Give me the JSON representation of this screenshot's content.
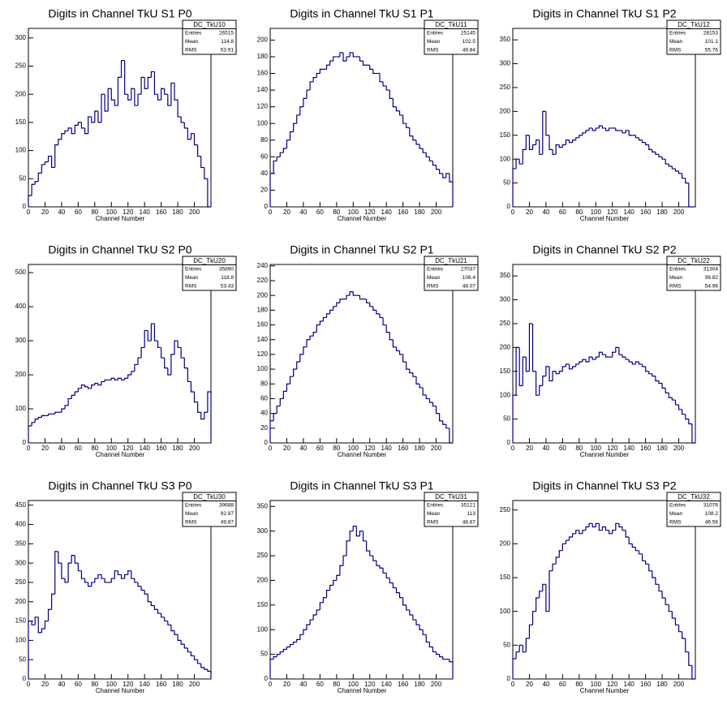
{
  "chart_data": [
    {
      "type": "histogram",
      "title": "Digits in Channel TkU S1 P0",
      "x_label": "Channel Number",
      "color": "#000080",
      "bins": [
        0,
        4,
        8,
        12,
        16,
        20,
        24,
        28,
        32,
        36,
        40,
        44,
        48,
        52,
        56,
        60,
        64,
        68,
        72,
        76,
        80,
        84,
        88,
        92,
        96,
        100,
        104,
        108,
        112,
        116,
        120,
        124,
        128,
        132,
        136,
        140,
        144,
        148,
        152,
        156,
        160,
        164,
        168,
        172,
        176,
        180,
        184,
        188,
        192,
        196,
        200,
        204,
        208,
        212,
        216,
        220
      ],
      "values": [
        20,
        40,
        45,
        60,
        75,
        80,
        90,
        70,
        110,
        120,
        130,
        135,
        140,
        130,
        145,
        150,
        140,
        130,
        160,
        150,
        170,
        150,
        200,
        170,
        210,
        190,
        180,
        230,
        260,
        200,
        190,
        210,
        180,
        200,
        230,
        210,
        230,
        240,
        200,
        190,
        210,
        200,
        180,
        220,
        190,
        160,
        150,
        140,
        120,
        130,
        110,
        90,
        70,
        50,
        0
      ],
      "xlim": [
        0,
        220
      ],
      "xticks": [
        0,
        20,
        40,
        60,
        80,
        100,
        120,
        140,
        160,
        180,
        200
      ],
      "ylim": [
        0,
        317
      ],
      "yticks": [
        0,
        50,
        100,
        150,
        200,
        250,
        300
      ],
      "stats": {
        "name": "DC_TkU10",
        "labels": [
          "Entries",
          "Mean",
          "RMS"
        ],
        "values": [
          26515,
          114.8,
          53.91
        ]
      }
    },
    {
      "type": "histogram",
      "title": "Digits in Channel TkU S1 P1",
      "x_label": "Channel Number",
      "color": "#000080",
      "bins": [
        0,
        4,
        8,
        12,
        16,
        20,
        24,
        28,
        32,
        36,
        40,
        44,
        48,
        52,
        56,
        60,
        64,
        68,
        72,
        76,
        80,
        84,
        88,
        92,
        96,
        100,
        104,
        108,
        112,
        116,
        120,
        124,
        128,
        132,
        136,
        140,
        144,
        148,
        152,
        156,
        160,
        164,
        168,
        172,
        176,
        180,
        184,
        188,
        192,
        196,
        200,
        204,
        208,
        212,
        216,
        220
      ],
      "values": [
        40,
        55,
        60,
        65,
        70,
        80,
        90,
        100,
        110,
        120,
        130,
        140,
        150,
        155,
        160,
        165,
        165,
        170,
        175,
        180,
        180,
        185,
        175,
        180,
        185,
        180,
        180,
        175,
        170,
        170,
        165,
        160,
        160,
        150,
        145,
        140,
        130,
        120,
        115,
        110,
        100,
        95,
        85,
        80,
        75,
        70,
        65,
        60,
        55,
        50,
        45,
        40,
        35,
        40,
        30
      ],
      "xlim": [
        0,
        220
      ],
      "xticks": [
        0,
        20,
        40,
        60,
        80,
        100,
        120,
        140,
        160,
        180,
        200
      ],
      "ylim": [
        0,
        214
      ],
      "yticks": [
        0,
        20,
        40,
        60,
        80,
        100,
        120,
        140,
        160,
        180,
        200
      ],
      "stats": {
        "name": "DC_TkU11",
        "labels": [
          "Entries",
          "Mean",
          "RMS"
        ],
        "values": [
          25145,
          102.5,
          49.84
        ]
      }
    },
    {
      "type": "histogram",
      "title": "Digits in Channel TkU S1 P2",
      "x_label": "Channel Number",
      "color": "#000080",
      "bins": [
        0,
        4,
        8,
        12,
        16,
        20,
        24,
        28,
        32,
        36,
        40,
        44,
        48,
        52,
        56,
        60,
        64,
        68,
        72,
        76,
        80,
        84,
        88,
        92,
        96,
        100,
        104,
        108,
        112,
        116,
        120,
        124,
        128,
        132,
        136,
        140,
        144,
        148,
        152,
        156,
        160,
        164,
        168,
        172,
        176,
        180,
        184,
        188,
        192,
        196,
        200,
        204,
        208,
        212,
        216,
        220
      ],
      "values": [
        80,
        100,
        90,
        120,
        150,
        120,
        130,
        140,
        110,
        200,
        150,
        120,
        110,
        130,
        125,
        130,
        140,
        135,
        140,
        145,
        150,
        155,
        160,
        165,
        160,
        165,
        170,
        165,
        160,
        165,
        165,
        160,
        160,
        155,
        160,
        150,
        150,
        145,
        140,
        135,
        130,
        120,
        115,
        110,
        105,
        100,
        90,
        85,
        80,
        75,
        70,
        60,
        50,
        0,
        0
      ],
      "xlim": [
        0,
        220
      ],
      "xticks": [
        0,
        20,
        40,
        60,
        80,
        100,
        120,
        140,
        160,
        180,
        200
      ],
      "ylim": [
        0,
        374
      ],
      "yticks": [
        0,
        50,
        100,
        150,
        200,
        250,
        300,
        350
      ],
      "stats": {
        "name": "DC_TkU12",
        "labels": [
          "Entries",
          "Mean",
          "RMS"
        ],
        "values": [
          28153,
          101.1,
          55.76
        ]
      }
    },
    {
      "type": "histogram",
      "title": "Digits in Channel TkU S2 P0",
      "x_label": "Channel Number",
      "color": "#000080",
      "bins": [
        0,
        4,
        8,
        12,
        16,
        20,
        24,
        28,
        32,
        36,
        40,
        44,
        48,
        52,
        56,
        60,
        64,
        68,
        72,
        76,
        80,
        84,
        88,
        92,
        96,
        100,
        104,
        108,
        112,
        116,
        120,
        124,
        128,
        132,
        136,
        140,
        144,
        148,
        152,
        156,
        160,
        164,
        168,
        172,
        176,
        180,
        184,
        188,
        192,
        196,
        200,
        204,
        208,
        212,
        216,
        220
      ],
      "values": [
        50,
        60,
        70,
        75,
        80,
        80,
        85,
        85,
        90,
        90,
        100,
        110,
        130,
        140,
        150,
        160,
        170,
        165,
        160,
        170,
        175,
        170,
        180,
        185,
        185,
        190,
        185,
        190,
        185,
        190,
        200,
        210,
        230,
        250,
        280,
        330,
        300,
        350,
        300,
        280,
        250,
        220,
        200,
        260,
        300,
        280,
        250,
        220,
        180,
        150,
        120,
        90,
        70,
        90,
        150
      ],
      "xlim": [
        0,
        220
      ],
      "xticks": [
        0,
        20,
        40,
        60,
        80,
        100,
        120,
        140,
        160,
        180,
        200
      ],
      "ylim": [
        0,
        524
      ],
      "yticks": [
        0,
        100,
        200,
        300,
        400,
        500
      ],
      "stats": {
        "name": "DC_TkU20",
        "labels": [
          "Entries",
          "Mean",
          "RMS"
        ],
        "values": [
          35890,
          118.8,
          53.43
        ]
      }
    },
    {
      "type": "histogram",
      "title": "Digits in Channel TkU S2 P1",
      "x_label": "Channel Number",
      "color": "#000080",
      "bins": [
        0,
        4,
        8,
        12,
        16,
        20,
        24,
        28,
        32,
        36,
        40,
        44,
        48,
        52,
        56,
        60,
        64,
        68,
        72,
        76,
        80,
        84,
        88,
        92,
        96,
        100,
        104,
        108,
        112,
        116,
        120,
        124,
        128,
        132,
        136,
        140,
        144,
        148,
        152,
        156,
        160,
        164,
        168,
        172,
        176,
        180,
        184,
        188,
        192,
        196,
        200,
        204,
        208,
        212,
        216,
        220
      ],
      "values": [
        30,
        40,
        50,
        60,
        70,
        80,
        90,
        100,
        110,
        120,
        130,
        140,
        145,
        150,
        160,
        165,
        170,
        175,
        180,
        185,
        190,
        195,
        195,
        200,
        205,
        200,
        200,
        195,
        195,
        190,
        185,
        180,
        175,
        170,
        160,
        150,
        140,
        130,
        125,
        120,
        110,
        100,
        95,
        90,
        80,
        75,
        65,
        60,
        55,
        50,
        40,
        30,
        25,
        20,
        0
      ],
      "xlim": [
        0,
        220
      ],
      "xticks": [
        0,
        20,
        40,
        60,
        80,
        100,
        120,
        140,
        160,
        180,
        200
      ],
      "ylim": [
        0,
        242
      ],
      "yticks": [
        0,
        20,
        40,
        60,
        80,
        100,
        120,
        140,
        160,
        180,
        200,
        220,
        240
      ],
      "stats": {
        "name": "DC_TkU21",
        "labels": [
          "Entries",
          "Mean",
          "RMS"
        ],
        "values": [
          27037,
          106.4,
          48.07
        ]
      }
    },
    {
      "type": "histogram",
      "title": "Digits in Channel TkU S2 P2",
      "x_label": "Channel Number",
      "color": "#000080",
      "bins": [
        0,
        4,
        8,
        12,
        16,
        20,
        24,
        28,
        32,
        36,
        40,
        44,
        48,
        52,
        56,
        60,
        64,
        68,
        72,
        76,
        80,
        84,
        88,
        92,
        96,
        100,
        104,
        108,
        112,
        116,
        120,
        124,
        128,
        132,
        136,
        140,
        144,
        148,
        152,
        156,
        160,
        164,
        168,
        172,
        176,
        180,
        184,
        188,
        192,
        196,
        200,
        204,
        208,
        212,
        216,
        220
      ],
      "values": [
        100,
        200,
        120,
        180,
        150,
        250,
        150,
        100,
        120,
        140,
        160,
        130,
        150,
        145,
        150,
        160,
        165,
        155,
        160,
        165,
        170,
        175,
        170,
        180,
        175,
        180,
        190,
        185,
        180,
        180,
        190,
        200,
        185,
        180,
        175,
        170,
        165,
        170,
        165,
        160,
        150,
        145,
        140,
        130,
        125,
        115,
        105,
        95,
        90,
        80,
        70,
        60,
        50,
        40,
        0
      ],
      "xlim": [
        0,
        220
      ],
      "xticks": [
        0,
        20,
        40,
        60,
        80,
        100,
        120,
        140,
        160,
        180,
        200
      ],
      "ylim": [
        0,
        374
      ],
      "yticks": [
        0,
        50,
        100,
        150,
        200,
        250,
        300,
        350
      ],
      "stats": {
        "name": "DC_TkU22",
        "labels": [
          "Entries",
          "Mean",
          "RMS"
        ],
        "values": [
          31304,
          98.82,
          54.96
        ]
      }
    },
    {
      "type": "histogram",
      "title": "Digits in Channel TkU S3 P0",
      "x_label": "Channel Number",
      "color": "#000080",
      "bins": [
        0,
        4,
        8,
        12,
        16,
        20,
        24,
        28,
        32,
        36,
        40,
        44,
        48,
        52,
        56,
        60,
        64,
        68,
        72,
        76,
        80,
        84,
        88,
        92,
        96,
        100,
        104,
        108,
        112,
        116,
        120,
        124,
        128,
        132,
        136,
        140,
        144,
        148,
        152,
        156,
        160,
        164,
        168,
        172,
        176,
        180,
        184,
        188,
        192,
        196,
        200,
        204,
        208,
        212,
        216,
        220
      ],
      "values": [
        150,
        140,
        160,
        120,
        130,
        150,
        180,
        220,
        330,
        300,
        260,
        250,
        300,
        320,
        300,
        280,
        260,
        250,
        240,
        250,
        260,
        270,
        260,
        250,
        250,
        260,
        280,
        270,
        260,
        270,
        280,
        260,
        250,
        240,
        230,
        220,
        200,
        190,
        180,
        170,
        160,
        150,
        140,
        125,
        115,
        100,
        90,
        80,
        70,
        60,
        50,
        40,
        30,
        25,
        20
      ],
      "xlim": [
        0,
        220
      ],
      "xticks": [
        0,
        20,
        40,
        60,
        80,
        100,
        120,
        140,
        160,
        180,
        200
      ],
      "ylim": [
        0,
        462
      ],
      "yticks": [
        0,
        50,
        100,
        150,
        200,
        250,
        300,
        350,
        400,
        450
      ],
      "stats": {
        "name": "DC_TkU30",
        "labels": [
          "Entries",
          "Mean",
          "RMS"
        ],
        "values": [
          39688,
          92.97,
          49.87
        ]
      }
    },
    {
      "type": "histogram",
      "title": "Digits in Channel TkU S3 P1",
      "x_label": "Channel Number",
      "color": "#000080",
      "bins": [
        0,
        4,
        8,
        12,
        16,
        20,
        24,
        28,
        32,
        36,
        40,
        44,
        48,
        52,
        56,
        60,
        64,
        68,
        72,
        76,
        80,
        84,
        88,
        92,
        96,
        100,
        104,
        108,
        112,
        116,
        120,
        124,
        128,
        132,
        136,
        140,
        144,
        148,
        152,
        156,
        160,
        164,
        168,
        172,
        176,
        180,
        184,
        188,
        192,
        196,
        200,
        204,
        208,
        212,
        216,
        220
      ],
      "values": [
        40,
        45,
        50,
        55,
        60,
        65,
        70,
        75,
        80,
        90,
        100,
        110,
        120,
        130,
        140,
        155,
        165,
        180,
        190,
        200,
        210,
        230,
        250,
        280,
        300,
        310,
        290,
        300,
        280,
        260,
        250,
        240,
        230,
        225,
        215,
        205,
        195,
        185,
        175,
        165,
        150,
        140,
        130,
        120,
        110,
        100,
        90,
        75,
        65,
        55,
        50,
        45,
        40,
        40,
        35
      ],
      "xlim": [
        0,
        220
      ],
      "xticks": [
        0,
        20,
        40,
        60,
        80,
        100,
        120,
        140,
        160,
        180,
        200
      ],
      "ylim": [
        0,
        362
      ],
      "yticks": [
        0,
        50,
        100,
        150,
        200,
        250,
        300,
        350
      ],
      "stats": {
        "name": "DC_TkU31",
        "labels": [
          "Entries",
          "Mean",
          "RMS"
        ],
        "values": [
          35121,
          113,
          48.67
        ]
      }
    },
    {
      "type": "histogram",
      "title": "Digits in Channel TkU S3 P2",
      "x_label": "Channel Number",
      "color": "#000080",
      "bins": [
        0,
        4,
        8,
        12,
        16,
        20,
        24,
        28,
        32,
        36,
        40,
        44,
        48,
        52,
        56,
        60,
        64,
        68,
        72,
        76,
        80,
        84,
        88,
        92,
        96,
        100,
        104,
        108,
        112,
        116,
        120,
        124,
        128,
        132,
        136,
        140,
        144,
        148,
        152,
        156,
        160,
        164,
        168,
        172,
        176,
        180,
        184,
        188,
        192,
        196,
        200,
        204,
        208,
        212,
        216,
        220
      ],
      "values": [
        30,
        40,
        50,
        40,
        60,
        80,
        100,
        120,
        130,
        140,
        100,
        160,
        170,
        180,
        190,
        200,
        205,
        210,
        215,
        220,
        215,
        220,
        225,
        230,
        225,
        230,
        220,
        225,
        220,
        215,
        220,
        230,
        225,
        220,
        210,
        200,
        195,
        190,
        185,
        175,
        170,
        160,
        150,
        140,
        130,
        120,
        110,
        100,
        90,
        80,
        70,
        60,
        40,
        20,
        0
      ],
      "xlim": [
        0,
        220
      ],
      "xticks": [
        0,
        20,
        40,
        60,
        80,
        100,
        120,
        140,
        160,
        180,
        200
      ],
      "ylim": [
        0,
        264
      ],
      "yticks": [
        0,
        50,
        100,
        150,
        200,
        250
      ],
      "stats": {
        "name": "DC_TkU32",
        "labels": [
          "Entries",
          "Mean",
          "RMS"
        ],
        "values": [
          31076,
          108.2,
          46.56
        ]
      }
    }
  ]
}
